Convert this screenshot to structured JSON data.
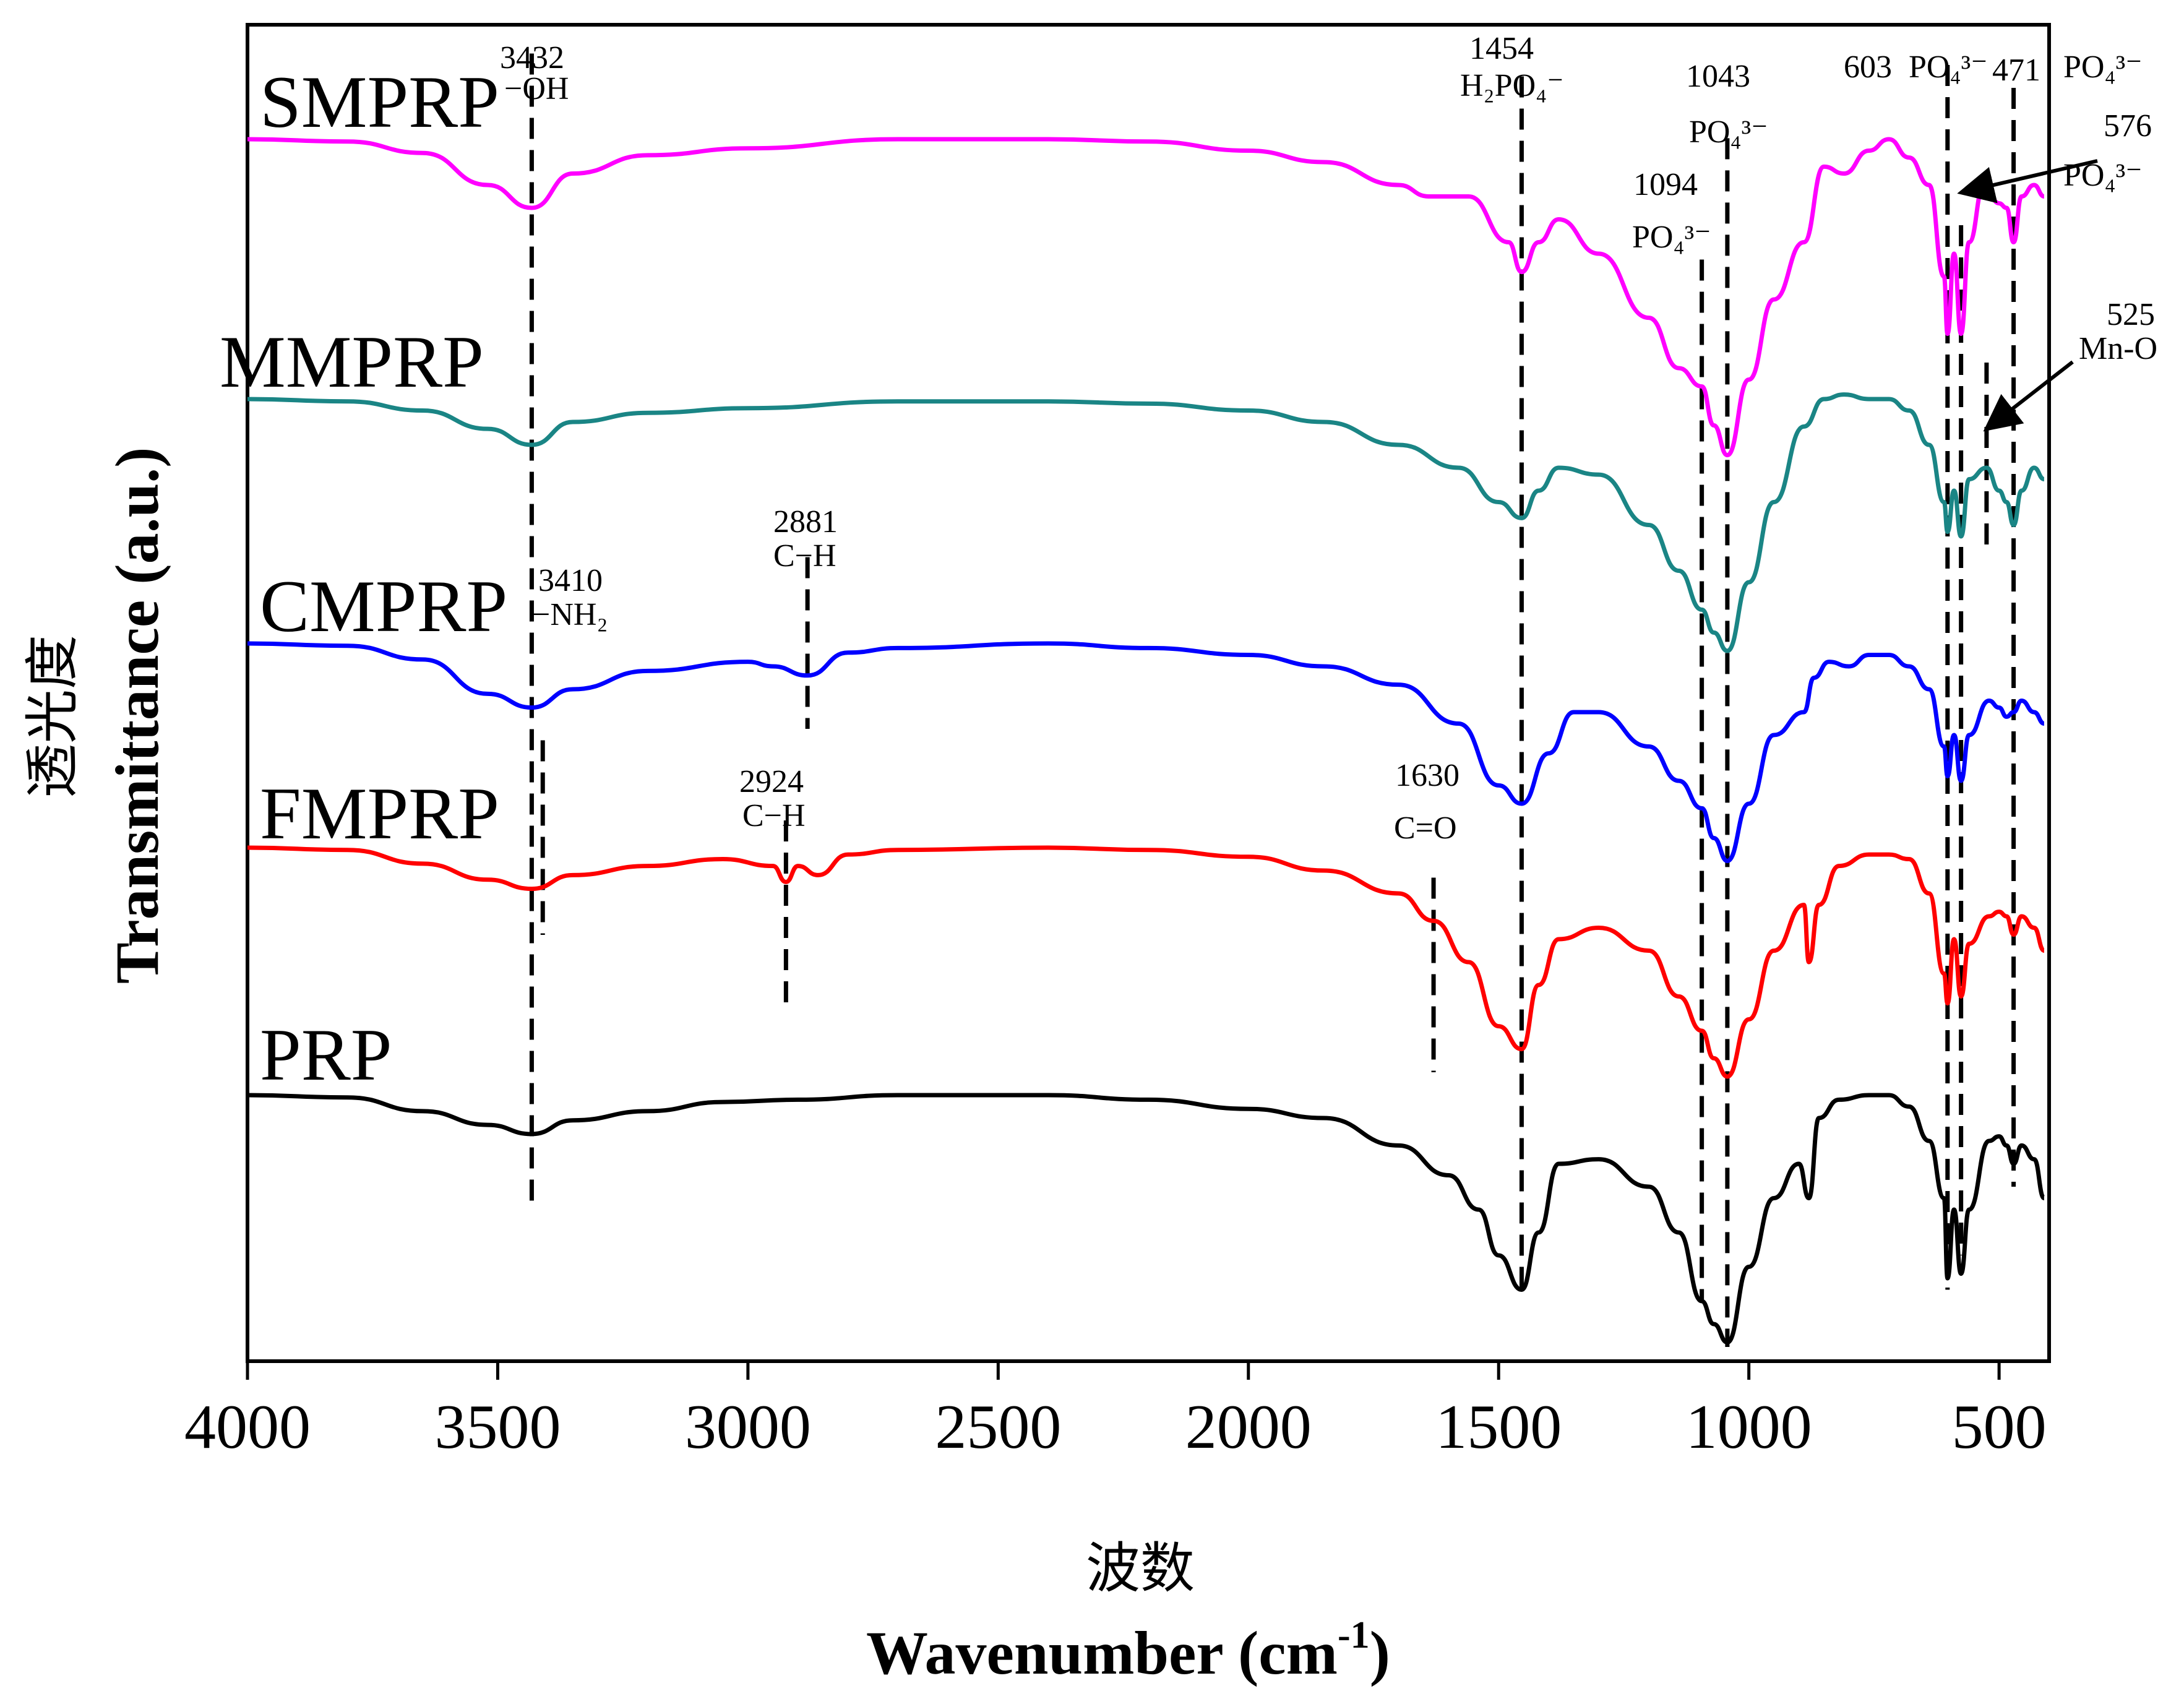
{
  "chart_data": {
    "type": "line",
    "title": "",
    "xlabel_cn": "波数",
    "xlabel": "Wavenumber (cm",
    "xlabel_sup": "-1",
    "xlabel_close": ")",
    "ylabel_cn": "透光度",
    "ylabel": "Transmittance (a.u.)",
    "xlim": [
      4000,
      400
    ],
    "x_ticks": [
      "4000",
      "3500",
      "3000",
      "2500",
      "2000",
      "1500",
      "1000",
      "500"
    ],
    "x_tick_values": [
      4000,
      3500,
      3000,
      2500,
      2000,
      1500,
      1000,
      500
    ],
    "series": [
      {
        "name": "SMPRP",
        "color": "#ff00ff",
        "offset": 4.0,
        "points": [
          [
            4000,
            0.0
          ],
          [
            3800,
            -0.01
          ],
          [
            3650,
            -0.06
          ],
          [
            3520,
            -0.2
          ],
          [
            3432,
            -0.3
          ],
          [
            3350,
            -0.15
          ],
          [
            3200,
            -0.07
          ],
          [
            3000,
            -0.04
          ],
          [
            2700,
            0.0
          ],
          [
            2400,
            0.0
          ],
          [
            2200,
            -0.01
          ],
          [
            2000,
            -0.05
          ],
          [
            1850,
            -0.1
          ],
          [
            1700,
            -0.2
          ],
          [
            1640,
            -0.25
          ],
          [
            1560,
            -0.25
          ],
          [
            1480,
            -0.45
          ],
          [
            1454,
            -0.58
          ],
          [
            1420,
            -0.45
          ],
          [
            1380,
            -0.35
          ],
          [
            1300,
            -0.5
          ],
          [
            1200,
            -0.78
          ],
          [
            1140,
            -1.0
          ],
          [
            1094,
            -1.08
          ],
          [
            1070,
            -1.25
          ],
          [
            1043,
            -1.38
          ],
          [
            1000,
            -1.05
          ],
          [
            950,
            -0.7
          ],
          [
            890,
            -0.45
          ],
          [
            850,
            -0.12
          ],
          [
            810,
            -0.15
          ],
          [
            760,
            -0.05
          ],
          [
            720,
            0.0
          ],
          [
            680,
            -0.08
          ],
          [
            640,
            -0.2
          ],
          [
            610,
            -0.6
          ],
          [
            603,
            -0.85
          ],
          [
            590,
            -0.5
          ],
          [
            576,
            -0.85
          ],
          [
            560,
            -0.45
          ],
          [
            530,
            -0.2
          ],
          [
            500,
            -0.28
          ],
          [
            485,
            -0.3
          ],
          [
            471,
            -0.45
          ],
          [
            455,
            -0.25
          ],
          [
            430,
            -0.2
          ],
          [
            410,
            -0.25
          ]
        ]
      },
      {
        "name": "MMPRP",
        "color": "#1a8585",
        "offset": 3.0,
        "points": [
          [
            4000,
            0.0
          ],
          [
            3800,
            -0.01
          ],
          [
            3650,
            -0.05
          ],
          [
            3520,
            -0.13
          ],
          [
            3432,
            -0.2
          ],
          [
            3350,
            -0.1
          ],
          [
            3200,
            -0.06
          ],
          [
            3000,
            -0.04
          ],
          [
            2700,
            -0.01
          ],
          [
            2400,
            -0.01
          ],
          [
            2200,
            -0.02
          ],
          [
            2000,
            -0.05
          ],
          [
            1850,
            -0.1
          ],
          [
            1700,
            -0.2
          ],
          [
            1580,
            -0.3
          ],
          [
            1500,
            -0.45
          ],
          [
            1454,
            -0.52
          ],
          [
            1420,
            -0.4
          ],
          [
            1380,
            -0.3
          ],
          [
            1300,
            -0.33
          ],
          [
            1200,
            -0.55
          ],
          [
            1140,
            -0.75
          ],
          [
            1094,
            -0.92
          ],
          [
            1070,
            -1.02
          ],
          [
            1043,
            -1.1
          ],
          [
            1000,
            -0.8
          ],
          [
            950,
            -0.45
          ],
          [
            890,
            -0.12
          ],
          [
            850,
            0.0
          ],
          [
            810,
            0.02
          ],
          [
            760,
            0.0
          ],
          [
            720,
            0.0
          ],
          [
            680,
            -0.05
          ],
          [
            640,
            -0.2
          ],
          [
            610,
            -0.45
          ],
          [
            603,
            -0.58
          ],
          [
            590,
            -0.4
          ],
          [
            576,
            -0.6
          ],
          [
            560,
            -0.35
          ],
          [
            525,
            -0.3
          ],
          [
            500,
            -0.4
          ],
          [
            485,
            -0.45
          ],
          [
            471,
            -0.55
          ],
          [
            455,
            -0.4
          ],
          [
            430,
            -0.3
          ],
          [
            410,
            -0.35
          ]
        ]
      },
      {
        "name": "CMPRP",
        "color": "#0000ff",
        "offset": 2.0,
        "points": [
          [
            4000,
            0.0
          ],
          [
            3800,
            -0.01
          ],
          [
            3650,
            -0.07
          ],
          [
            3520,
            -0.22
          ],
          [
            3432,
            -0.28
          ],
          [
            3350,
            -0.2
          ],
          [
            3200,
            -0.12
          ],
          [
            3000,
            -0.08
          ],
          [
            2950,
            -0.1
          ],
          [
            2881,
            -0.14
          ],
          [
            2800,
            -0.04
          ],
          [
            2700,
            -0.02
          ],
          [
            2400,
            0.0
          ],
          [
            2200,
            -0.02
          ],
          [
            2000,
            -0.05
          ],
          [
            1850,
            -0.1
          ],
          [
            1700,
            -0.18
          ],
          [
            1580,
            -0.35
          ],
          [
            1500,
            -0.62
          ],
          [
            1454,
            -0.7
          ],
          [
            1400,
            -0.48
          ],
          [
            1350,
            -0.3
          ],
          [
            1300,
            -0.3
          ],
          [
            1200,
            -0.45
          ],
          [
            1140,
            -0.6
          ],
          [
            1094,
            -0.72
          ],
          [
            1070,
            -0.85
          ],
          [
            1043,
            -0.95
          ],
          [
            1000,
            -0.7
          ],
          [
            950,
            -0.4
          ],
          [
            890,
            -0.3
          ],
          [
            870,
            -0.15
          ],
          [
            840,
            -0.08
          ],
          [
            800,
            -0.1
          ],
          [
            760,
            -0.05
          ],
          [
            720,
            -0.05
          ],
          [
            680,
            -0.1
          ],
          [
            640,
            -0.2
          ],
          [
            610,
            -0.45
          ],
          [
            603,
            -0.58
          ],
          [
            590,
            -0.4
          ],
          [
            576,
            -0.6
          ],
          [
            560,
            -0.4
          ],
          [
            520,
            -0.25
          ],
          [
            500,
            -0.28
          ],
          [
            485,
            -0.32
          ],
          [
            471,
            -0.3
          ],
          [
            455,
            -0.25
          ],
          [
            430,
            -0.3
          ],
          [
            410,
            -0.35
          ]
        ]
      },
      {
        "name": "FMPRP",
        "color": "#ff0000",
        "offset": 1.0,
        "points": [
          [
            4000,
            0.0
          ],
          [
            3800,
            -0.01
          ],
          [
            3650,
            -0.07
          ],
          [
            3520,
            -0.14
          ],
          [
            3432,
            -0.18
          ],
          [
            3350,
            -0.12
          ],
          [
            3200,
            -0.08
          ],
          [
            3050,
            -0.05
          ],
          [
            2950,
            -0.08
          ],
          [
            2924,
            -0.15
          ],
          [
            2900,
            -0.08
          ],
          [
            2860,
            -0.12
          ],
          [
            2800,
            -0.03
          ],
          [
            2700,
            -0.01
          ],
          [
            2400,
            0.0
          ],
          [
            2200,
            -0.01
          ],
          [
            2000,
            -0.04
          ],
          [
            1850,
            -0.1
          ],
          [
            1700,
            -0.2
          ],
          [
            1630,
            -0.32
          ],
          [
            1560,
            -0.5
          ],
          [
            1500,
            -0.78
          ],
          [
            1454,
            -0.88
          ],
          [
            1420,
            -0.6
          ],
          [
            1380,
            -0.4
          ],
          [
            1300,
            -0.35
          ],
          [
            1200,
            -0.45
          ],
          [
            1140,
            -0.65
          ],
          [
            1094,
            -0.8
          ],
          [
            1070,
            -0.92
          ],
          [
            1043,
            -1.0
          ],
          [
            1000,
            -0.75
          ],
          [
            950,
            -0.45
          ],
          [
            890,
            -0.25
          ],
          [
            880,
            -0.5
          ],
          [
            860,
            -0.25
          ],
          [
            820,
            -0.08
          ],
          [
            760,
            -0.03
          ],
          [
            720,
            -0.03
          ],
          [
            680,
            -0.05
          ],
          [
            640,
            -0.2
          ],
          [
            610,
            -0.55
          ],
          [
            603,
            -0.68
          ],
          [
            590,
            -0.4
          ],
          [
            576,
            -0.65
          ],
          [
            560,
            -0.42
          ],
          [
            520,
            -0.3
          ],
          [
            500,
            -0.28
          ],
          [
            485,
            -0.3
          ],
          [
            471,
            -0.38
          ],
          [
            455,
            -0.3
          ],
          [
            430,
            -0.35
          ],
          [
            410,
            -0.45
          ]
        ]
      },
      {
        "name": "PRP",
        "color": "#000000",
        "offset": 0.0,
        "points": [
          [
            4000,
            0.0
          ],
          [
            3800,
            -0.01
          ],
          [
            3650,
            -0.07
          ],
          [
            3520,
            -0.13
          ],
          [
            3432,
            -0.17
          ],
          [
            3350,
            -0.11
          ],
          [
            3200,
            -0.07
          ],
          [
            3050,
            -0.03
          ],
          [
            2900,
            -0.02
          ],
          [
            2700,
            0.0
          ],
          [
            2400,
            0.0
          ],
          [
            2200,
            -0.02
          ],
          [
            2000,
            -0.06
          ],
          [
            1850,
            -0.1
          ],
          [
            1700,
            -0.22
          ],
          [
            1600,
            -0.35
          ],
          [
            1540,
            -0.5
          ],
          [
            1500,
            -0.7
          ],
          [
            1454,
            -0.85
          ],
          [
            1420,
            -0.6
          ],
          [
            1380,
            -0.3
          ],
          [
            1300,
            -0.28
          ],
          [
            1200,
            -0.4
          ],
          [
            1140,
            -0.6
          ],
          [
            1094,
            -0.9
          ],
          [
            1070,
            -1.0
          ],
          [
            1043,
            -1.08
          ],
          [
            1000,
            -0.75
          ],
          [
            950,
            -0.45
          ],
          [
            900,
            -0.3
          ],
          [
            880,
            -0.45
          ],
          [
            860,
            -0.1
          ],
          [
            820,
            -0.02
          ],
          [
            760,
            0.0
          ],
          [
            720,
            0.0
          ],
          [
            680,
            -0.05
          ],
          [
            640,
            -0.2
          ],
          [
            610,
            -0.45
          ],
          [
            603,
            -0.8
          ],
          [
            590,
            -0.5
          ],
          [
            576,
            -0.78
          ],
          [
            560,
            -0.5
          ],
          [
            520,
            -0.2
          ],
          [
            500,
            -0.18
          ],
          [
            485,
            -0.22
          ],
          [
            471,
            -0.3
          ],
          [
            455,
            -0.22
          ],
          [
            430,
            -0.28
          ],
          [
            410,
            -0.45
          ]
        ]
      }
    ],
    "dashed_lines": [
      {
        "x": 3432,
        "y_top": 4.55,
        "y_bottom": -0.5
      },
      {
        "x": 3410,
        "y_top": 1.55,
        "y_bottom": 0.7
      },
      {
        "x": 2881,
        "y_top": 2.35,
        "y_bottom": 1.6
      },
      {
        "x": 2924,
        "y_top": 1.2,
        "y_bottom": 0.4
      },
      {
        "x": 1630,
        "y_top": 0.95,
        "y_bottom": 0.1
      },
      {
        "x": 1454,
        "y_top": 4.45,
        "y_bottom": -0.85
      },
      {
        "x": 1094,
        "y_top": 3.65,
        "y_bottom": -0.9
      },
      {
        "x": 1043,
        "y_top": 4.18,
        "y_bottom": -1.1
      },
      {
        "x": 603,
        "y_top": 4.5,
        "y_bottom": -0.85
      },
      {
        "x": 576,
        "y_top": 3.8,
        "y_bottom": -0.7
      },
      {
        "x": 525,
        "y_top": 3.2,
        "y_bottom": 2.4
      },
      {
        "x": 471,
        "y_top": 4.4,
        "y_bottom": -0.4
      }
    ],
    "annotations": [
      {
        "id": "a3432",
        "lines": [
          "3432",
          "−OH"
        ]
      },
      {
        "id": "a3410",
        "lines": [
          "3410",
          "−NH₂"
        ]
      },
      {
        "id": "a2881",
        "lines": [
          "2881",
          "C−H"
        ]
      },
      {
        "id": "a2924",
        "lines": [
          "2924",
          "C−H"
        ]
      },
      {
        "id": "a1630",
        "lines": [
          "1630",
          "C=O"
        ]
      },
      {
        "id": "a1454",
        "lines": [
          "1454",
          "H₂PO₄⁻"
        ]
      },
      {
        "id": "a1094",
        "lines": [
          "1094",
          "PO₄³⁻"
        ]
      },
      {
        "id": "a1043",
        "lines": [
          "1043",
          "PO₄³⁻"
        ]
      },
      {
        "id": "a603",
        "lines": [
          "603",
          "PO₄³⁻"
        ]
      },
      {
        "id": "a471",
        "lines": [
          "471",
          "PO₄³⁻"
        ]
      },
      {
        "id": "a576",
        "lines": [
          "576",
          "PO₄³⁻"
        ]
      },
      {
        "id": "a525",
        "lines": [
          "525",
          "Mn-O"
        ]
      }
    ]
  }
}
